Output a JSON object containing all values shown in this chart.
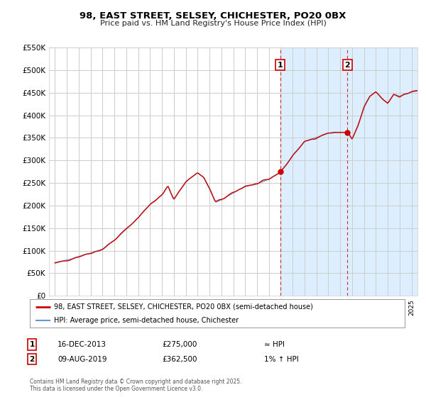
{
  "title": "98, EAST STREET, SELSEY, CHICHESTER, PO20 0BX",
  "subtitle": "Price paid vs. HM Land Registry's House Price Index (HPI)",
  "legend_line1": "98, EAST STREET, SELSEY, CHICHESTER, PO20 0BX (semi-detached house)",
  "legend_line2": "HPI: Average price, semi-detached house, Chichester",
  "annotation1_label": "1",
  "annotation1_date": "16-DEC-2013",
  "annotation1_price": "£275,000",
  "annotation1_hpi": "≈ HPI",
  "annotation1_year": 2013.96,
  "annotation1_value": 275000,
  "annotation2_label": "2",
  "annotation2_date": "09-AUG-2019",
  "annotation2_price": "£362,500",
  "annotation2_hpi": "1% ↑ HPI",
  "annotation2_year": 2019.61,
  "annotation2_value": 362500,
  "footer": "Contains HM Land Registry data © Crown copyright and database right 2025.\nThis data is licensed under the Open Government Licence v3.0.",
  "bg_color": "#ffffff",
  "plot_bg_color": "#ffffff",
  "grid_color": "#cccccc",
  "line_color": "#cc0000",
  "hpi_line_color": "#6699cc",
  "highlight_bg_color": "#ddeeff",
  "ylim": [
    0,
    550000
  ],
  "yticks": [
    0,
    50000,
    100000,
    150000,
    200000,
    250000,
    300000,
    350000,
    400000,
    450000,
    500000,
    550000
  ],
  "xlim_start": 1994.5,
  "xlim_end": 2025.5
}
